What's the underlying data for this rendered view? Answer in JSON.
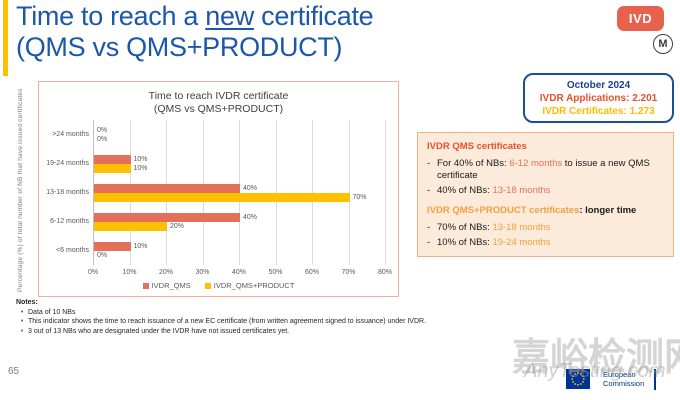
{
  "slide": {
    "title": {
      "part1": "Time to reach a ",
      "underlined": "new",
      "part2": " certificate",
      "line2": "(QMS vs QMS+PRODUCT)"
    },
    "badge": "IVD",
    "m_logo": "M"
  },
  "stats_box": {
    "title": "October 2024",
    "applications": "IVDR Applications: 2.201",
    "certificates": "IVDR Certificates: 1.273"
  },
  "info_box": {
    "dash": "-",
    "qms": {
      "heading": "IVDR QMS certificates",
      "b1_pre": "For 40% of NBs: ",
      "b1_highlight": "6-12 months",
      "b1_post": " to issue a new QMS certificate",
      "b2_pre": "40% of NBs: ",
      "b2_highlight": "13-18 months"
    },
    "product": {
      "heading_highlight": "IVDR QMS+PRODUCT certificates",
      "heading_rest": ": longer time",
      "b1_pre": "70% of NBs: ",
      "b1_highlight": "13-18 months",
      "b2_pre": "10% of NBs: ",
      "b2_highlight": "19-24 months"
    }
  },
  "chart_data": {
    "type": "bar",
    "orientation": "horizontal",
    "title": "Time to reach IVDR certificate",
    "subtitle": "(QMS vs QMS+PRODUCT)",
    "ylabel": "Percentage (%) of total number of NB that have issued certificates",
    "categories": [
      ">24 months",
      "19-24 months",
      "13-18 months",
      "6-12 months",
      "<6 months"
    ],
    "series": [
      {
        "name": "IVDR_QMS",
        "color": "#E2705A",
        "values": [
          0,
          10,
          40,
          40,
          10
        ]
      },
      {
        "name": "IVDR_QMS+PRODUCT",
        "color": "#FFC000",
        "values": [
          0,
          10,
          70,
          20,
          0
        ]
      }
    ],
    "xlim": [
      0,
      80
    ],
    "xtick_step": 10,
    "xtick_labels": [
      "0%",
      "10%",
      "20%",
      "30%",
      "40%",
      "50%",
      "60%",
      "70%",
      "80%"
    ],
    "value_label_suffix": "%",
    "legend_position": "bottom",
    "grid": "vertical"
  },
  "notes": {
    "heading": "Notes:",
    "marker": "•",
    "items": [
      "Data of 10 NBs",
      "This indicator shows the time to reach issuance of a new EC certificate (from written agreement signed to issuance) under IVDR.",
      "3 out of 13 NBs who are designated under the IVDR have not issued certificates yet."
    ]
  },
  "footer": {
    "page_number": "65",
    "logo_line1": "European",
    "logo_line2": "Commission"
  },
  "watermark": {
    "line1": "嘉峪检测网",
    "line2": "AnyTesting.com"
  },
  "colors": {
    "qms_bar": "#E2705A",
    "product_bar": "#FFC000",
    "accent_yellow": "#FFC000",
    "title_blue": "#1B57AA",
    "stats_border_blue": "#1C4DA0",
    "alert_red": "#E8502B",
    "highlight_orange": "#F2A13C",
    "gold": "#FFB900",
    "chart_border": "#F4AF9E",
    "info_box_bg": "#FCEADB"
  }
}
